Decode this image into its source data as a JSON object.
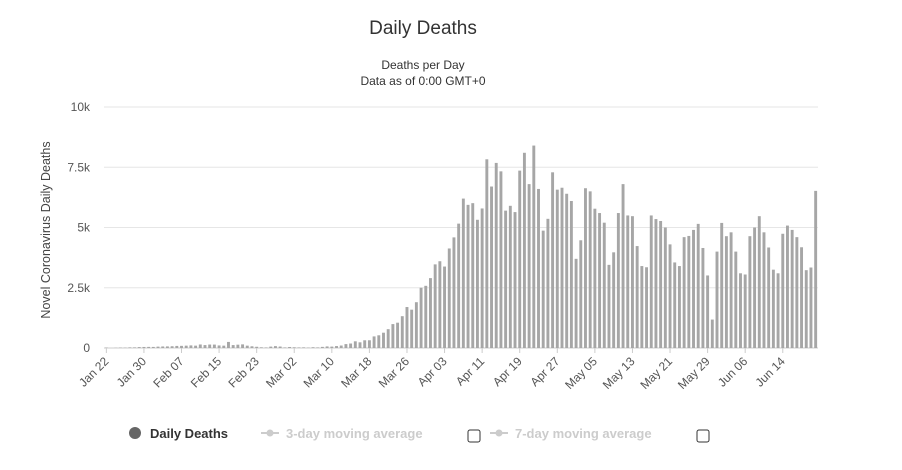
{
  "chart_data": {
    "type": "bar",
    "title": "Daily Deaths",
    "subtitle": [
      "Deaths per Day",
      "Data as of 0:00 GMT+0"
    ],
    "ylabel": "Novel Coronavirus Daily Deaths",
    "ylim": [
      0,
      10000
    ],
    "y_ticks": [
      0,
      2500,
      5000,
      7500,
      10000
    ],
    "y_tick_labels": [
      "0",
      "2.5k",
      "5k",
      "7.5k",
      "10k"
    ],
    "x_tick_labels": [
      "Jan 22",
      "Jan 30",
      "Feb 07",
      "Feb 15",
      "Feb 23",
      "Mar 02",
      "Mar 10",
      "Mar 18",
      "Mar 26",
      "Apr 03",
      "Apr 11",
      "Apr 19",
      "Apr 27",
      "May 05",
      "May 13",
      "May 21",
      "May 29",
      "Jun 06",
      "Jun 14"
    ],
    "x_tick_step_days": 8,
    "x_start": "Jan 22",
    "grid": "horizontal",
    "bar_color": "#a6a6a6",
    "series": [
      {
        "name": "Daily Deaths",
        "values": [
          17,
          0,
          8,
          16,
          14,
          26,
          26,
          38,
          43,
          46,
          45,
          57,
          64,
          66,
          73,
          86,
          89,
          97,
          108,
          97,
          146,
          121,
          143,
          142,
          106,
          97,
          252,
          121,
          138,
          150,
          97,
          71,
          51,
          29,
          23,
          58,
          78,
          60,
          24,
          42,
          30,
          24,
          27,
          16,
          32,
          25,
          47,
          65,
          58,
          81,
          102,
          162,
          186,
          277,
          236,
          320,
          321,
          481,
          527,
          635,
          781,
          992,
          1050,
          1320,
          1700,
          1590,
          1900,
          2500,
          2580,
          2900,
          3470,
          3600,
          3380,
          4130,
          4590,
          5160,
          6200,
          5940,
          6010,
          5320,
          5790,
          7830,
          6700,
          7680,
          7330,
          5700,
          5900,
          5640,
          7360,
          8100,
          6800,
          8400,
          6600,
          4870,
          5360,
          7290,
          6570,
          6650,
          6400,
          6100,
          3700,
          4470,
          6630,
          6500,
          5780,
          5600,
          5200,
          3450,
          3970,
          5600,
          6800,
          5500,
          5470,
          4230,
          3400,
          3350,
          5500,
          5350,
          5270,
          5000,
          4300,
          3550,
          3400,
          4600,
          4650,
          4900,
          5150,
          4150,
          3010,
          1180,
          4000,
          5190,
          4640,
          4800,
          4000,
          3100,
          3050,
          4640,
          5000,
          5470,
          4800,
          4170,
          3250,
          3100,
          4740,
          5080,
          4900,
          4600,
          4180,
          3230,
          3340,
          6520
        ]
      }
    ],
    "legend": {
      "items": [
        {
          "label": "Daily Deaths",
          "color": "#666666",
          "enabled": true
        },
        {
          "label": "3-day moving average",
          "color": "#cccccc",
          "enabled": false
        },
        {
          "label": "7-day moving average",
          "color": "#cccccc",
          "enabled": false
        }
      ]
    }
  }
}
